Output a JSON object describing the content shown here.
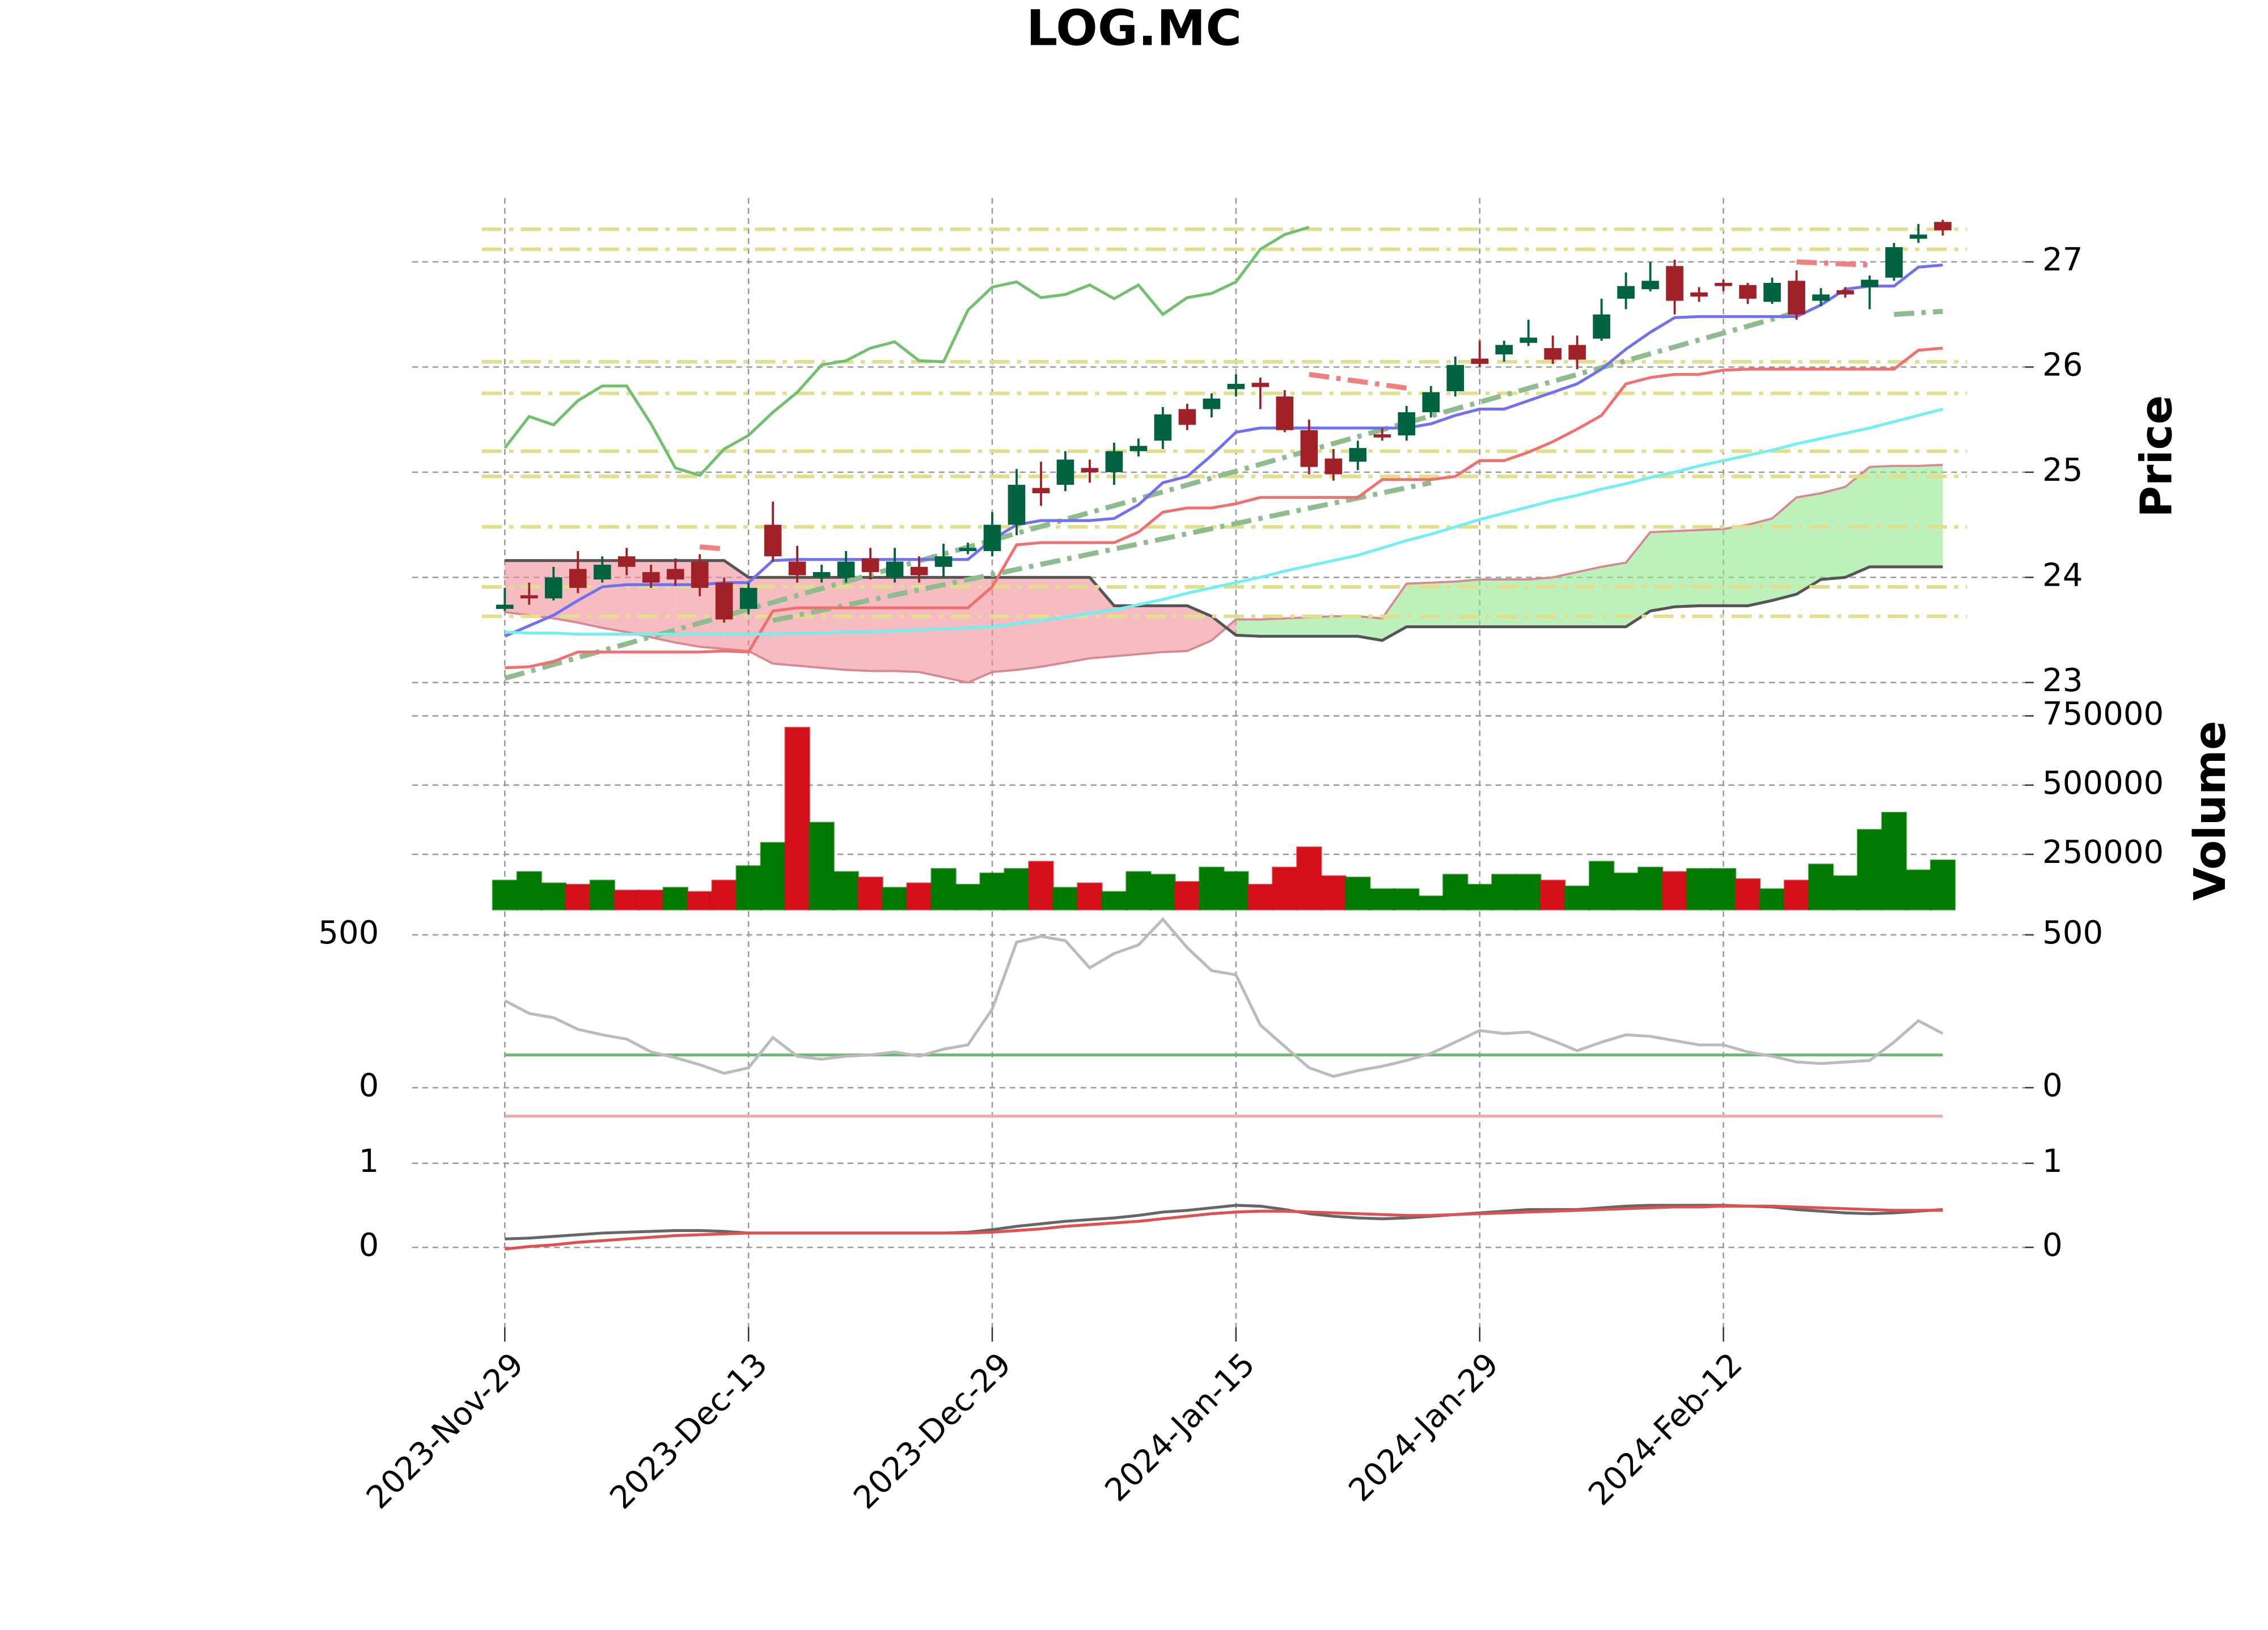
{
  "chart_data": [
    {
      "type": "candlestick",
      "title": "LOG.MC",
      "y_label": "Price",
      "categories": [
        "2023-Nov-29",
        null,
        null,
        null,
        null,
        null,
        null,
        null,
        null,
        null,
        "2023-Dec-13",
        null,
        null,
        null,
        null,
        null,
        null,
        null,
        null,
        null,
        "2023-Dec-29",
        null,
        null,
        null,
        null,
        null,
        null,
        null,
        null,
        null,
        "2024-Jan-15",
        null,
        null,
        null,
        null,
        null,
        null,
        null,
        null,
        null,
        "2024-Jan-29",
        null,
        null,
        null,
        null,
        null,
        null,
        null,
        null,
        null,
        "2024-Feb-12",
        null,
        null,
        null,
        null,
        null,
        null,
        null,
        null,
        null
      ],
      "open": [
        23.7,
        23.83,
        23.8,
        24.08,
        23.98,
        24.2,
        24.05,
        24.08,
        24.15,
        23.95,
        23.7,
        24.5,
        24.15,
        24.0,
        24.0,
        24.18,
        24.0,
        24.1,
        24.1,
        24.25,
        24.25,
        24.5,
        24.85,
        24.88,
        25.04,
        25.0,
        25.2,
        25.3,
        25.6,
        25.6,
        25.79,
        25.85,
        25.72,
        25.4,
        25.13,
        25.1,
        25.36,
        25.35,
        25.57,
        25.77,
        26.08,
        26.12,
        26.23,
        26.18,
        26.21,
        26.27,
        26.65,
        26.74,
        26.96,
        26.71,
        26.8,
        26.78,
        26.62,
        26.82,
        26.63,
        26.73,
        26.76,
        26.85,
        27.22,
        27.38
      ],
      "high": [
        23.9,
        23.95,
        24.1,
        24.25,
        24.2,
        24.28,
        24.12,
        24.18,
        24.22,
        24.0,
        23.95,
        24.72,
        24.3,
        24.12,
        24.25,
        24.28,
        24.28,
        24.2,
        24.32,
        24.33,
        24.62,
        25.03,
        25.1,
        25.2,
        25.12,
        25.28,
        25.32,
        25.62,
        25.65,
        25.75,
        25.93,
        25.9,
        25.78,
        25.5,
        25.22,
        25.3,
        25.42,
        25.63,
        25.82,
        26.1,
        26.25,
        26.25,
        26.45,
        26.3,
        26.3,
        26.65,
        26.9,
        27.0,
        27.02,
        26.76,
        26.83,
        26.8,
        26.85,
        26.92,
        26.75,
        26.76,
        26.87,
        27.18,
        27.36,
        27.4
      ],
      "low": [
        23.68,
        23.74,
        23.78,
        23.85,
        23.95,
        24.02,
        23.9,
        23.92,
        23.82,
        23.57,
        23.65,
        24.15,
        23.95,
        23.95,
        23.95,
        23.98,
        23.95,
        23.95,
        24.0,
        24.22,
        24.2,
        24.4,
        24.68,
        24.82,
        24.9,
        24.88,
        25.15,
        25.22,
        25.4,
        25.52,
        25.72,
        25.6,
        25.38,
        24.98,
        24.92,
        25.02,
        25.3,
        25.3,
        25.52,
        25.72,
        26.0,
        26.05,
        26.2,
        26.03,
        25.98,
        26.25,
        26.55,
        26.72,
        26.5,
        26.62,
        26.72,
        26.6,
        26.6,
        26.45,
        26.58,
        26.66,
        26.55,
        26.82,
        27.18,
        27.25
      ],
      "close": [
        23.74,
        23.8,
        24.0,
        23.9,
        24.12,
        24.1,
        23.95,
        23.98,
        23.9,
        23.6,
        23.9,
        24.2,
        24.02,
        24.05,
        24.15,
        24.05,
        24.15,
        24.02,
        24.2,
        24.28,
        24.5,
        24.88,
        24.8,
        25.12,
        25.0,
        25.2,
        25.25,
        25.55,
        25.45,
        25.7,
        25.84,
        25.81,
        25.4,
        25.05,
        24.98,
        25.23,
        25.33,
        25.57,
        25.76,
        26.02,
        26.03,
        26.21,
        26.28,
        26.07,
        26.07,
        26.5,
        26.77,
        26.82,
        26.63,
        26.67,
        26.77,
        26.65,
        26.8,
        26.5,
        26.69,
        26.69,
        26.83,
        27.14,
        27.26,
        27.3
      ],
      "up_color": "#006340",
      "down_color": "#a02128",
      "ylim": [
        22.9,
        27.58
      ],
      "yticks": [
        23,
        24,
        25,
        26,
        27
      ],
      "grid": true,
      "lines": [
        {
          "color": "#7070f0",
          "values": [
            23.44,
            23.54,
            23.64,
            23.78,
            23.91,
            23.93,
            23.93,
            23.93,
            23.93,
            23.95,
            23.95,
            24.16,
            24.17,
            24.17,
            24.17,
            24.17,
            24.17,
            24.17,
            24.17,
            24.17,
            24.36,
            24.5,
            24.54,
            24.54,
            24.54,
            24.56,
            24.69,
            24.9,
            24.96,
            25.16,
            25.38,
            25.42,
            25.42,
            25.42,
            25.42,
            25.42,
            25.42,
            25.42,
            25.46,
            25.54,
            25.6,
            25.6,
            25.68,
            25.76,
            25.84,
            25.98,
            26.17,
            26.33,
            26.47,
            26.48,
            26.48,
            26.48,
            26.48,
            26.48,
            26.59,
            26.74,
            26.77,
            26.77,
            26.95,
            26.97
          ]
        },
        {
          "color": "#f07070",
          "values": [
            23.14,
            23.15,
            23.2,
            23.29,
            23.29,
            23.29,
            23.29,
            23.29,
            23.29,
            23.3,
            23.29,
            23.68,
            23.71,
            23.71,
            23.71,
            23.71,
            23.71,
            23.71,
            23.71,
            23.71,
            23.91,
            24.31,
            24.33,
            24.33,
            24.33,
            24.33,
            24.43,
            24.62,
            24.66,
            24.66,
            24.7,
            24.76,
            24.76,
            24.76,
            24.76,
            24.76,
            24.93,
            24.93,
            24.93,
            24.96,
            25.11,
            25.11,
            25.19,
            25.29,
            25.41,
            25.54,
            25.84,
            25.9,
            25.93,
            25.93,
            25.97,
            25.98,
            25.98,
            25.98,
            25.98,
            25.98,
            25.98,
            25.98,
            26.16,
            26.18
          ]
        },
        {
          "color": "#70f0f0",
          "values": [
            23.48,
            23.47,
            23.47,
            23.46,
            23.46,
            23.46,
            23.46,
            23.46,
            23.46,
            23.46,
            23.46,
            23.46,
            23.47,
            23.47,
            23.48,
            23.48,
            23.49,
            23.5,
            23.51,
            23.52,
            23.53,
            23.56,
            23.59,
            23.62,
            23.66,
            23.69,
            23.74,
            23.79,
            23.85,
            23.9,
            23.95,
            24.0,
            24.06,
            24.11,
            24.16,
            24.21,
            24.28,
            24.35,
            24.41,
            24.48,
            24.55,
            24.61,
            24.67,
            24.73,
            24.78,
            24.84,
            24.89,
            24.95,
            25.0,
            25.06,
            25.11,
            25.16,
            25.21,
            25.27,
            25.32,
            25.37,
            25.42,
            25.48,
            25.54,
            25.6
          ]
        },
        {
          "color": "#70c070",
          "values": [
            25.23,
            25.53,
            25.45,
            25.68,
            25.82,
            25.82,
            25.46,
            25.04,
            24.97,
            25.22,
            25.35,
            25.57,
            25.76,
            26.02,
            26.06,
            26.18,
            26.24,
            26.06,
            26.05,
            26.54,
            26.76,
            26.81,
            26.66,
            26.69,
            26.78,
            26.65,
            26.78,
            26.5,
            26.66,
            26.7,
            26.81,
            27.12,
            27.26,
            27.33,
            null,
            null,
            null,
            null,
            null,
            null,
            null,
            null,
            null,
            null,
            null,
            null,
            null,
            null,
            null,
            null,
            null,
            null,
            null,
            null,
            null,
            null,
            null,
            null,
            null,
            null
          ]
        }
      ],
      "cloud": {
        "span_a": [
          23.67,
          23.64,
          23.61,
          23.57,
          23.52,
          23.48,
          23.43,
          23.38,
          23.34,
          23.32,
          23.3,
          23.18,
          23.16,
          23.14,
          23.12,
          23.11,
          23.11,
          23.1,
          23.05,
          23.0,
          23.1,
          23.12,
          23.15,
          23.19,
          23.23,
          23.25,
          23.27,
          23.29,
          23.3,
          23.4,
          23.6,
          23.6,
          23.61,
          23.62,
          23.63,
          23.63,
          23.61,
          23.94,
          23.95,
          23.96,
          23.98,
          23.98,
          23.98,
          24.0,
          24.05,
          24.1,
          24.14,
          24.43,
          24.44,
          24.45,
          24.46,
          24.5,
          24.56,
          24.76,
          24.8,
          24.86,
          25.05,
          25.06,
          25.06,
          25.07
        ],
        "span_b": [
          24.16,
          24.16,
          24.16,
          24.16,
          24.16,
          24.16,
          24.16,
          24.16,
          24.16,
          24.16,
          24.0,
          24.0,
          24.0,
          24.0,
          24.0,
          24.0,
          24.0,
          24.0,
          24.0,
          24.0,
          24.0,
          24.0,
          24.0,
          24.0,
          24.0,
          23.73,
          23.73,
          23.73,
          23.73,
          23.63,
          23.45,
          23.44,
          23.44,
          23.44,
          23.44,
          23.44,
          23.4,
          23.53,
          23.53,
          23.53,
          23.53,
          23.53,
          23.53,
          23.53,
          23.53,
          23.53,
          23.53,
          23.68,
          23.72,
          23.73,
          23.73,
          23.73,
          23.78,
          23.84,
          23.98,
          24.0,
          24.1,
          24.1,
          24.1,
          24.1
        ],
        "up_color": "#90e890",
        "down_color": "#f09098",
        "line_color": "#555555"
      },
      "levels": {
        "values": [
          27.31,
          27.12,
          26.05,
          25.75,
          25.2,
          24.96,
          24.48,
          23.91,
          23.63
        ],
        "color": "#e2df8c"
      },
      "trend_lines": [
        {
          "x": [
            0,
            53
          ],
          "values": [
            23.04,
            26.52
          ],
          "color": "#8fbc8f"
        },
        {
          "x": [
            11,
            38
          ],
          "values": [
            23.59,
            24.9
          ],
          "color": "#8fbc8f"
        },
        {
          "x": [
            57,
            59
          ],
          "values": [
            26.5,
            26.53
          ],
          "color": "#8fbc8f"
        },
        {
          "x": [
            8,
            9
          ],
          "values": [
            24.29,
            24.27
          ],
          "color": "#f08080"
        },
        {
          "x": [
            33,
            37
          ],
          "values": [
            25.93,
            25.8
          ],
          "color": "#f08080"
        },
        {
          "x": [
            53,
            56
          ],
          "values": [
            27.0,
            26.97
          ],
          "color": "#f08080"
        }
      ]
    },
    {
      "type": "bar",
      "y_label": "Volume",
      "values": [
        156000,
        187000,
        146000,
        141000,
        156000,
        120000,
        120000,
        130000,
        115000,
        156000,
        208000,
        292000,
        708000,
        365000,
        187000,
        167000,
        130000,
        146000,
        198000,
        141000,
        182000,
        198000,
        224000,
        130000,
        146000,
        115000,
        187000,
        177000,
        151000,
        203000,
        187000,
        141000,
        203000,
        276000,
        172000,
        167000,
        125000,
        125000,
        99000,
        177000,
        141000,
        177000,
        177000,
        156000,
        135000,
        224000,
        182000,
        203000,
        187000,
        198000,
        198000,
        161000,
        125000,
        156000,
        214000,
        172000,
        339000,
        401000,
        193000,
        229000
      ],
      "up_color": "#007a00",
      "down_color": "#d3101a",
      "ylim": [
        50000,
        760000
      ],
      "yticks": [
        250000,
        500000,
        750000
      ],
      "grid": true
    },
    {
      "type": "line",
      "ylim": [
        -150,
        540
      ],
      "yticks": [
        0,
        500
      ],
      "grid": true,
      "lines": [
        {
          "color": "#bbbbbb",
          "values": [
            285,
            243,
            229,
            191,
            173,
            159,
            117,
            98,
            75,
            47,
            65,
            164,
            103,
            93,
            103,
            107,
            117,
            103,
            126,
            140,
            257,
            476,
            495,
            481,
            392,
            439,
            467,
            551,
            458,
            383,
            369,
            205,
            135,
            65,
            37,
            56,
            70,
            89,
            112,
            149,
            187,
            177,
            182,
            154,
            121,
            149,
            173,
            168,
            154,
            140,
            140,
            117,
            103,
            84,
            79,
            84,
            89,
            149,
            219,
            177
          ]
        }
      ],
      "hlines": [
        {
          "value": 107,
          "color": "#6cb86c"
        },
        {
          "value": -93,
          "color": "#f4a8a8"
        }
      ]
    },
    {
      "type": "line",
      "ylim": [
        -0.95,
        1.2
      ],
      "yticks": [
        0,
        1
      ],
      "grid": true,
      "lines": [
        {
          "color": "#666666",
          "values": [
            0.1,
            0.11,
            0.13,
            0.15,
            0.17,
            0.18,
            0.19,
            0.2,
            0.2,
            0.19,
            0.17,
            0.17,
            0.17,
            0.17,
            0.17,
            0.17,
            0.17,
            0.17,
            0.17,
            0.18,
            0.21,
            0.25,
            0.28,
            0.31,
            0.33,
            0.35,
            0.38,
            0.42,
            0.44,
            0.47,
            0.5,
            0.49,
            0.45,
            0.4,
            0.37,
            0.35,
            0.34,
            0.35,
            0.37,
            0.39,
            0.41,
            0.43,
            0.45,
            0.45,
            0.45,
            0.47,
            0.49,
            0.5,
            0.5,
            0.5,
            0.5,
            0.49,
            0.48,
            0.45,
            0.43,
            0.41,
            0.4,
            0.41,
            0.43,
            0.45
          ]
        },
        {
          "color": "#e05050",
          "values": [
            -0.02,
            0.01,
            0.03,
            0.06,
            0.08,
            0.1,
            0.12,
            0.14,
            0.15,
            0.16,
            0.17,
            0.17,
            0.17,
            0.17,
            0.17,
            0.17,
            0.17,
            0.17,
            0.17,
            0.17,
            0.18,
            0.2,
            0.22,
            0.25,
            0.27,
            0.29,
            0.31,
            0.34,
            0.37,
            0.4,
            0.42,
            0.43,
            0.43,
            0.42,
            0.41,
            0.4,
            0.39,
            0.38,
            0.38,
            0.39,
            0.4,
            0.41,
            0.42,
            0.43,
            0.44,
            0.45,
            0.46,
            0.47,
            0.48,
            0.48,
            0.49,
            0.49,
            0.49,
            0.48,
            0.47,
            0.46,
            0.45,
            0.44,
            0.44,
            0.44
          ]
        }
      ]
    }
  ]
}
